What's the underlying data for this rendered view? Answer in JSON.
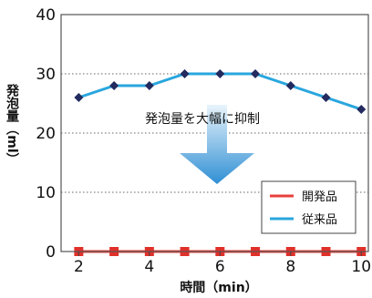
{
  "chart_data": {
    "type": "line",
    "title": "",
    "xlabel": "時間（min）",
    "ylabel": "発泡量（ml）",
    "xlim": [
      1.5,
      10.2
    ],
    "ylim": [
      0,
      40
    ],
    "x_ticks": [
      2,
      4,
      6,
      8,
      10
    ],
    "y_ticks": [
      0,
      10,
      20,
      30,
      40
    ],
    "grid": "horizontal-dotted",
    "legend_position": "bottom-right",
    "annotation": "発泡量を大幅に抑制",
    "x": [
      2,
      3,
      4,
      5,
      6,
      7,
      8,
      9,
      10
    ],
    "series": [
      {
        "name": "開発品",
        "values": [
          0,
          0,
          0,
          0,
          0,
          0,
          0,
          0,
          0
        ],
        "color": "#e8403a",
        "marker": "square",
        "marker_color": "#e0302a"
      },
      {
        "name": "従来品",
        "values": [
          26,
          28,
          28,
          30,
          30,
          30,
          28,
          26,
          24
        ],
        "color": "#29a6de",
        "marker": "diamond",
        "marker_color": "#222a5e"
      }
    ]
  },
  "colors": {
    "arrow_top": "#e9f4fb",
    "arrow_bottom": "#2f8fd4",
    "frame": "#555555"
  }
}
